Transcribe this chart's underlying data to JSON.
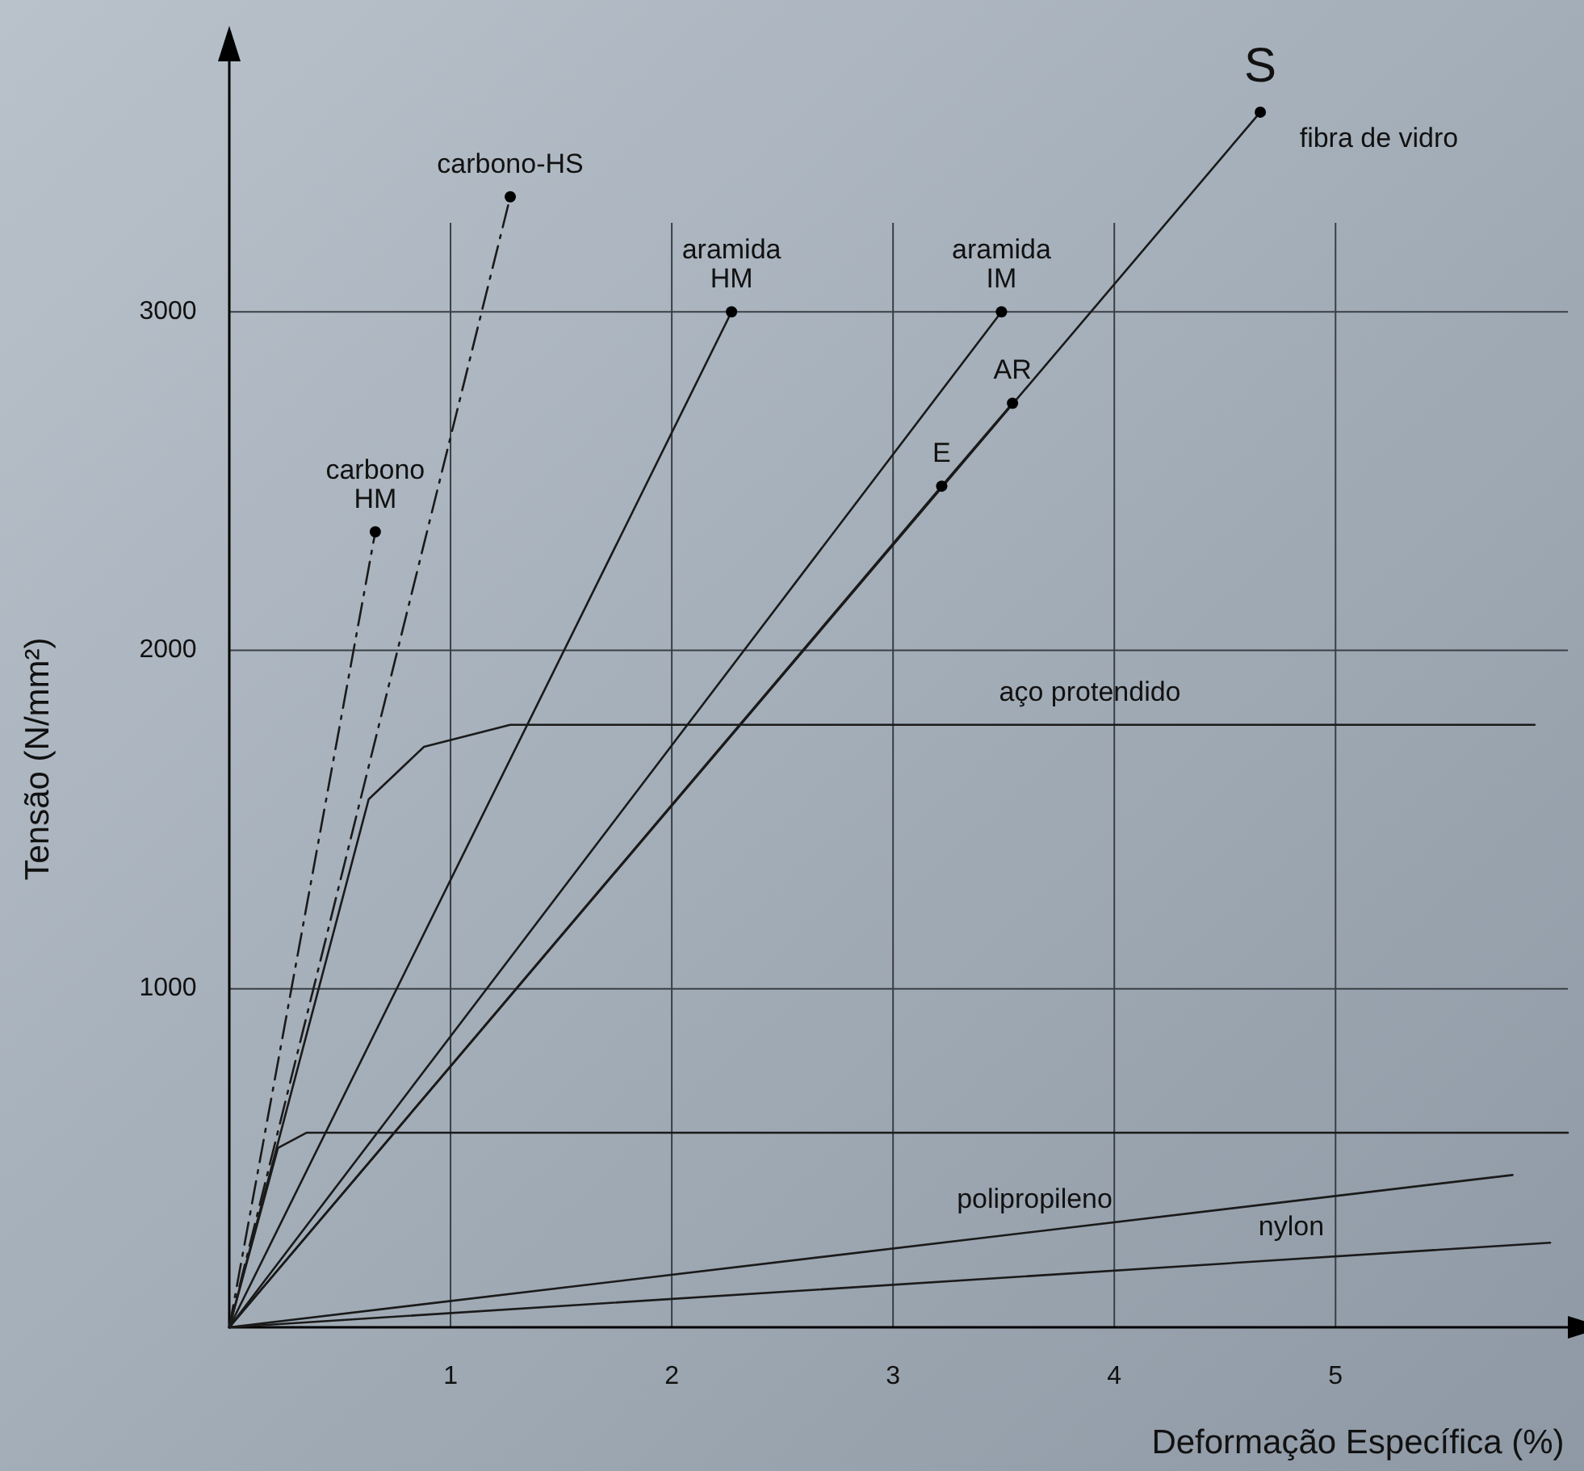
{
  "chart_data": {
    "type": "line",
    "xlabel": "Deformação Específica (%)",
    "ylabel": "Tensão (N/mm²)",
    "xlim": [
      0,
      6.05
    ],
    "ylim": [
      0,
      3740
    ],
    "xticks": [
      1,
      2,
      3,
      4,
      5
    ],
    "yticks": [
      1000,
      2000,
      3000
    ],
    "grid": true,
    "series": [
      {
        "line_style": "dashed",
        "color": "#1a1a1a",
        "x": [
          0,
          0.66
        ],
        "values": [
          0,
          2350
        ]
      },
      {
        "line_style": "dashed",
        "color": "#1a1a1a",
        "x": [
          0,
          1.27
        ],
        "values": [
          0,
          3340
        ]
      },
      {
        "line_style": "solid",
        "color": "#1a1a1a",
        "x": [
          0,
          2.27
        ],
        "values": [
          0,
          3000
        ]
      },
      {
        "line_style": "solid",
        "color": "#1a1a1a",
        "x": [
          0,
          3.49
        ],
        "values": [
          0,
          3000
        ]
      },
      {
        "line_style": "solid",
        "color": "#1a1a1a",
        "x": [
          0,
          4.66
        ],
        "values": [
          0,
          3590
        ]
      },
      {
        "line_style": "solid",
        "color": "#1a1a1a",
        "x": [
          0,
          3.22,
          3.54
        ],
        "values": [
          0,
          2485,
          2730
        ]
      },
      {
        "line_style": "solid",
        "color": "#1a1a1a",
        "x": [
          0,
          0.63,
          0.88,
          1.27,
          5.9
        ],
        "values": [
          0,
          1560,
          1715,
          1780,
          1780
        ]
      },
      {
        "line_style": "solid",
        "color": "#1a1a1a",
        "x": [
          0,
          0.22,
          0.35,
          6.05
        ],
        "values": [
          0,
          530,
          575,
          575
        ]
      },
      {
        "line_style": "solid",
        "color": "#1a1a1a",
        "x": [
          0,
          5.8
        ],
        "values": [
          0,
          450
        ]
      },
      {
        "line_style": "solid",
        "color": "#1a1a1a",
        "x": [
          0,
          5.97
        ],
        "values": [
          0,
          250
        ]
      },
      {
        "type": "scatter",
        "marker": "circle",
        "color": "#000000",
        "x": [
          0.66,
          1.27,
          2.27,
          3.49,
          4.66,
          3.22,
          3.54
        ],
        "values": [
          2350,
          3340,
          3000,
          3000,
          3590,
          2485,
          2730
        ]
      }
    ],
    "annotations": [
      {
        "text": "carbono\nHM",
        "x": 0.66,
        "y": 2350
      },
      {
        "text": "carbono-HS",
        "x": 1.27,
        "y": 3340
      },
      {
        "text": "aramida\nHM",
        "x": 2.27,
        "y": 3000
      },
      {
        "text": "aramida\nIM",
        "x": 3.49,
        "y": 3000
      },
      {
        "text": "S",
        "x": 4.66,
        "y": 3590
      },
      {
        "text": "fibra de vidro",
        "x": 4.66,
        "y": 3590
      },
      {
        "text": "AR",
        "x": 3.54,
        "y": 2730
      },
      {
        "text": "E",
        "x": 3.22,
        "y": 2485
      },
      {
        "text": "aço protendido",
        "x": 3.89,
        "y": 1780
      },
      {
        "text": "polipropileno",
        "x": 3.64,
        "y": 282
      },
      {
        "text": "nylon",
        "x": 4.8,
        "y": 201
      }
    ]
  }
}
